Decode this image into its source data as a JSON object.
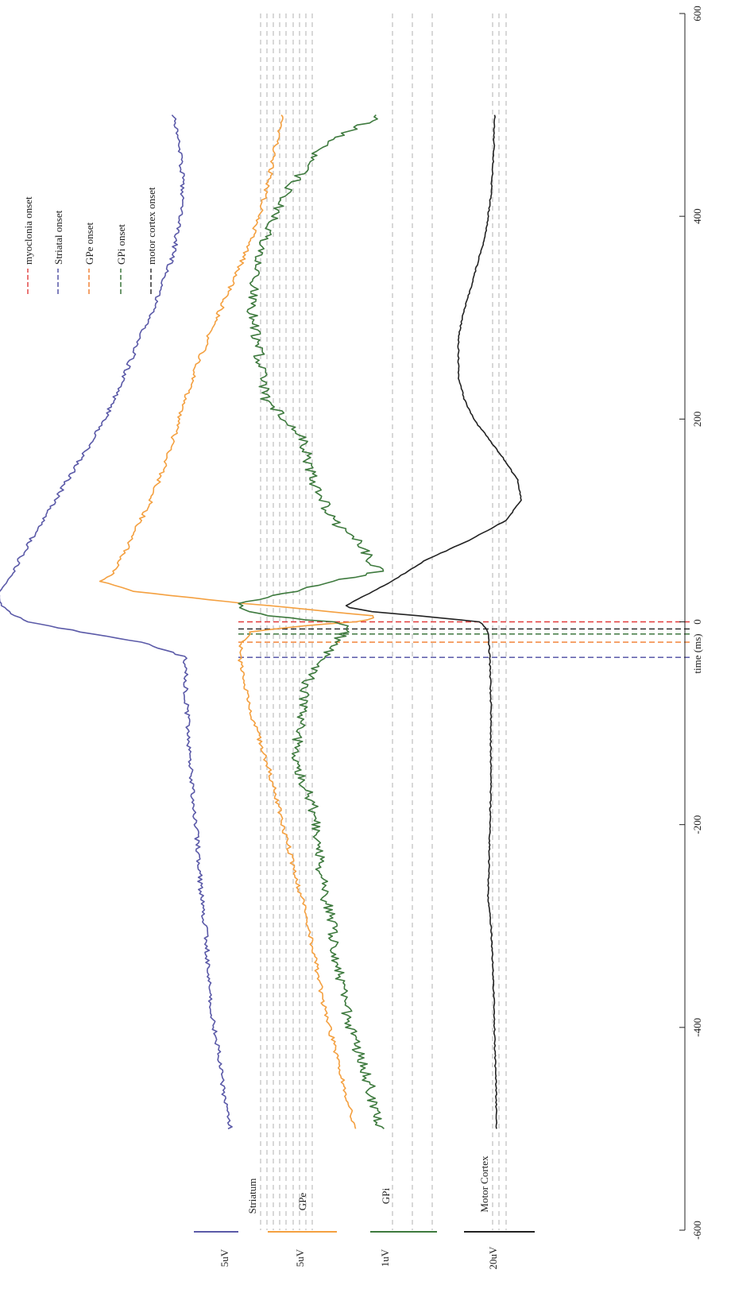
{
  "chart_data": {
    "type": "line",
    "orientation": "rotated-90",
    "xlabel": "time (ms)",
    "xlim": [
      -600,
      600
    ],
    "xticks": [
      -600,
      -400,
      -200,
      0,
      200,
      400,
      600
    ],
    "channels": [
      {
        "name": "Striatum",
        "scale": "5uV",
        "color": "#5b5aa8",
        "baseline": 0.0
      },
      {
        "name": "GPe",
        "scale": "5uV",
        "color": "#f4a040",
        "baseline": 0.0
      },
      {
        "name": "GPi",
        "scale": "1uV",
        "color": "#3e7a3e",
        "baseline": 0.0
      },
      {
        "name": "Motor Cortex",
        "scale": "20uV",
        "color": "#222222",
        "baseline": 0.0
      }
    ],
    "onsets": [
      {
        "label": "myoclonia onset",
        "time": 0,
        "color": "#e23b3b"
      },
      {
        "label": "Striatal onset",
        "time": -35,
        "color": "#4a4aa0"
      },
      {
        "label": "GPe onset",
        "time": -20,
        "color": "#f07a2a"
      },
      {
        "label": "GPi onset",
        "time": -12,
        "color": "#2e6b2e"
      },
      {
        "label": "motor cortex onset",
        "time": -7,
        "color": "#222222"
      }
    ],
    "series": [
      {
        "name": "Striatum",
        "x": [
          -500,
          -460,
          -420,
          -380,
          -340,
          -300,
          -260,
          -220,
          -180,
          -140,
          -100,
          -60,
          -35,
          -20,
          -10,
          0,
          10,
          20,
          30,
          50,
          80,
          120,
          160,
          200,
          240,
          280,
          320,
          360,
          400,
          440,
          480,
          500
        ],
        "values": [
          0,
          0.3,
          0.5,
          0.8,
          0.9,
          1.0,
          1.2,
          1.3,
          1.5,
          1.6,
          1.7,
          1.8,
          1.8,
          3.5,
          6.0,
          8.0,
          8.9,
          9.3,
          9.2,
          8.7,
          8.0,
          7.0,
          6.0,
          5.0,
          4.3,
          3.6,
          2.9,
          2.3,
          2.0,
          1.9,
          2.1,
          2.3
        ]
      },
      {
        "name": "GPe",
        "x": [
          -500,
          -460,
          -420,
          -380,
          -340,
          -300,
          -260,
          -220,
          -180,
          -140,
          -100,
          -60,
          -35,
          -20,
          -10,
          -5,
          0,
          5,
          10,
          20,
          30,
          40,
          50,
          80,
          120,
          160,
          200,
          240,
          280,
          320,
          360,
          400,
          440,
          480,
          500
        ],
        "values": [
          0,
          0.4,
          0.8,
          1.2,
          1.5,
          1.8,
          2.2,
          2.6,
          3.0,
          3.4,
          3.9,
          4.3,
          4.5,
          4.4,
          4.0,
          2.5,
          0,
          -1.0,
          1.0,
          5.0,
          8.5,
          9.8,
          9.3,
          8.7,
          7.9,
          7.3,
          6.8,
          6.3,
          5.7,
          5.0,
          4.3,
          3.7,
          3.3,
          3.0,
          2.8
        ]
      },
      {
        "name": "GPi",
        "x": [
          -500,
          -460,
          -420,
          -380,
          -340,
          -300,
          -260,
          -220,
          -180,
          -140,
          -100,
          -60,
          -35,
          -20,
          -10,
          -5,
          0,
          5,
          10,
          15,
          20,
          30,
          40,
          50,
          60,
          80,
          100,
          140,
          180,
          220,
          260,
          300,
          340,
          380,
          420,
          460,
          480,
          500
        ],
        "values": [
          0,
          0.5,
          1.2,
          1.8,
          2.2,
          2.5,
          3.0,
          3.2,
          3.5,
          4.5,
          4.2,
          3.8,
          2.9,
          2.4,
          1.8,
          1.5,
          2.5,
          5.5,
          7.0,
          7.5,
          7.0,
          4.5,
          2.5,
          0,
          0.5,
          1.0,
          2.5,
          3.5,
          4.0,
          6.0,
          6.3,
          6.7,
          6.5,
          6.0,
          5.0,
          3.5,
          2.0,
          0
        ]
      },
      {
        "name": "Motor Cortex",
        "x": [
          -500,
          -460,
          -420,
          -380,
          -340,
          -300,
          -270,
          -240,
          -200,
          -160,
          -120,
          -80,
          -40,
          -20,
          -10,
          -5,
          0,
          5,
          10,
          15,
          20,
          40,
          60,
          80,
          100,
          120,
          140,
          160,
          180,
          200,
          220,
          240,
          260,
          280,
          300,
          340,
          380,
          420,
          460,
          500
        ],
        "values": [
          0,
          0.02,
          0.1,
          0.12,
          0.2,
          0.3,
          0.45,
          0.4,
          0.35,
          0.3,
          0.3,
          0.3,
          0.35,
          0.4,
          0.45,
          0.6,
          0.9,
          3.5,
          6.5,
          8.0,
          7.5,
          5.5,
          3.8,
          1.5,
          -0.5,
          -1.3,
          -1.1,
          -0.4,
          0.4,
          1.2,
          1.7,
          2.0,
          2.0,
          2.0,
          1.8,
          1.2,
          0.6,
          0.3,
          0.15,
          0.1
        ]
      }
    ],
    "legend_position": "top-right"
  }
}
